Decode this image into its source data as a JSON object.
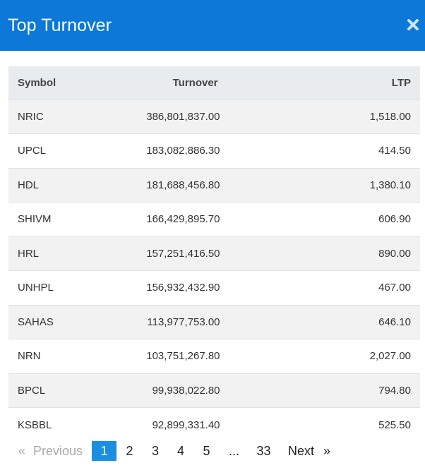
{
  "modal": {
    "title": "Top Turnover",
    "close_icon": "close-icon",
    "accent_color": "#0c78d8"
  },
  "table": {
    "headers": {
      "symbol": "Symbol",
      "turnover": "Turnover",
      "ltp": "LTP"
    },
    "rows": [
      {
        "symbol": "NRIC",
        "turnover": "386,801,837.00",
        "ltp": "1,518.00"
      },
      {
        "symbol": "UPCL",
        "turnover": "183,082,886.30",
        "ltp": "414.50"
      },
      {
        "symbol": "HDL",
        "turnover": "181,688,456.80",
        "ltp": "1,380.10"
      },
      {
        "symbol": "SHIVM",
        "turnover": "166,429,895.70",
        "ltp": "606.90"
      },
      {
        "symbol": "HRL",
        "turnover": "157,251,416.50",
        "ltp": "890.00"
      },
      {
        "symbol": "UNHPL",
        "turnover": "156,932,432.90",
        "ltp": "467.00"
      },
      {
        "symbol": "SAHAS",
        "turnover": "113,977,753.00",
        "ltp": "646.10"
      },
      {
        "symbol": "NRN",
        "turnover": "103,751,267.80",
        "ltp": "2,027.00"
      },
      {
        "symbol": "BPCL",
        "turnover": "99,938,022.80",
        "ltp": "794.80"
      },
      {
        "symbol": "KSBBL",
        "turnover": "92,899,331.40",
        "ltp": "525.50"
      }
    ]
  },
  "pagination": {
    "prev_arrow": "«",
    "prev_label": "Previous",
    "pages": [
      "1",
      "2",
      "3",
      "4",
      "5"
    ],
    "ellipsis": "...",
    "last_page": "33",
    "next_label": "Next",
    "next_arrow": "»",
    "active_page": "1"
  }
}
